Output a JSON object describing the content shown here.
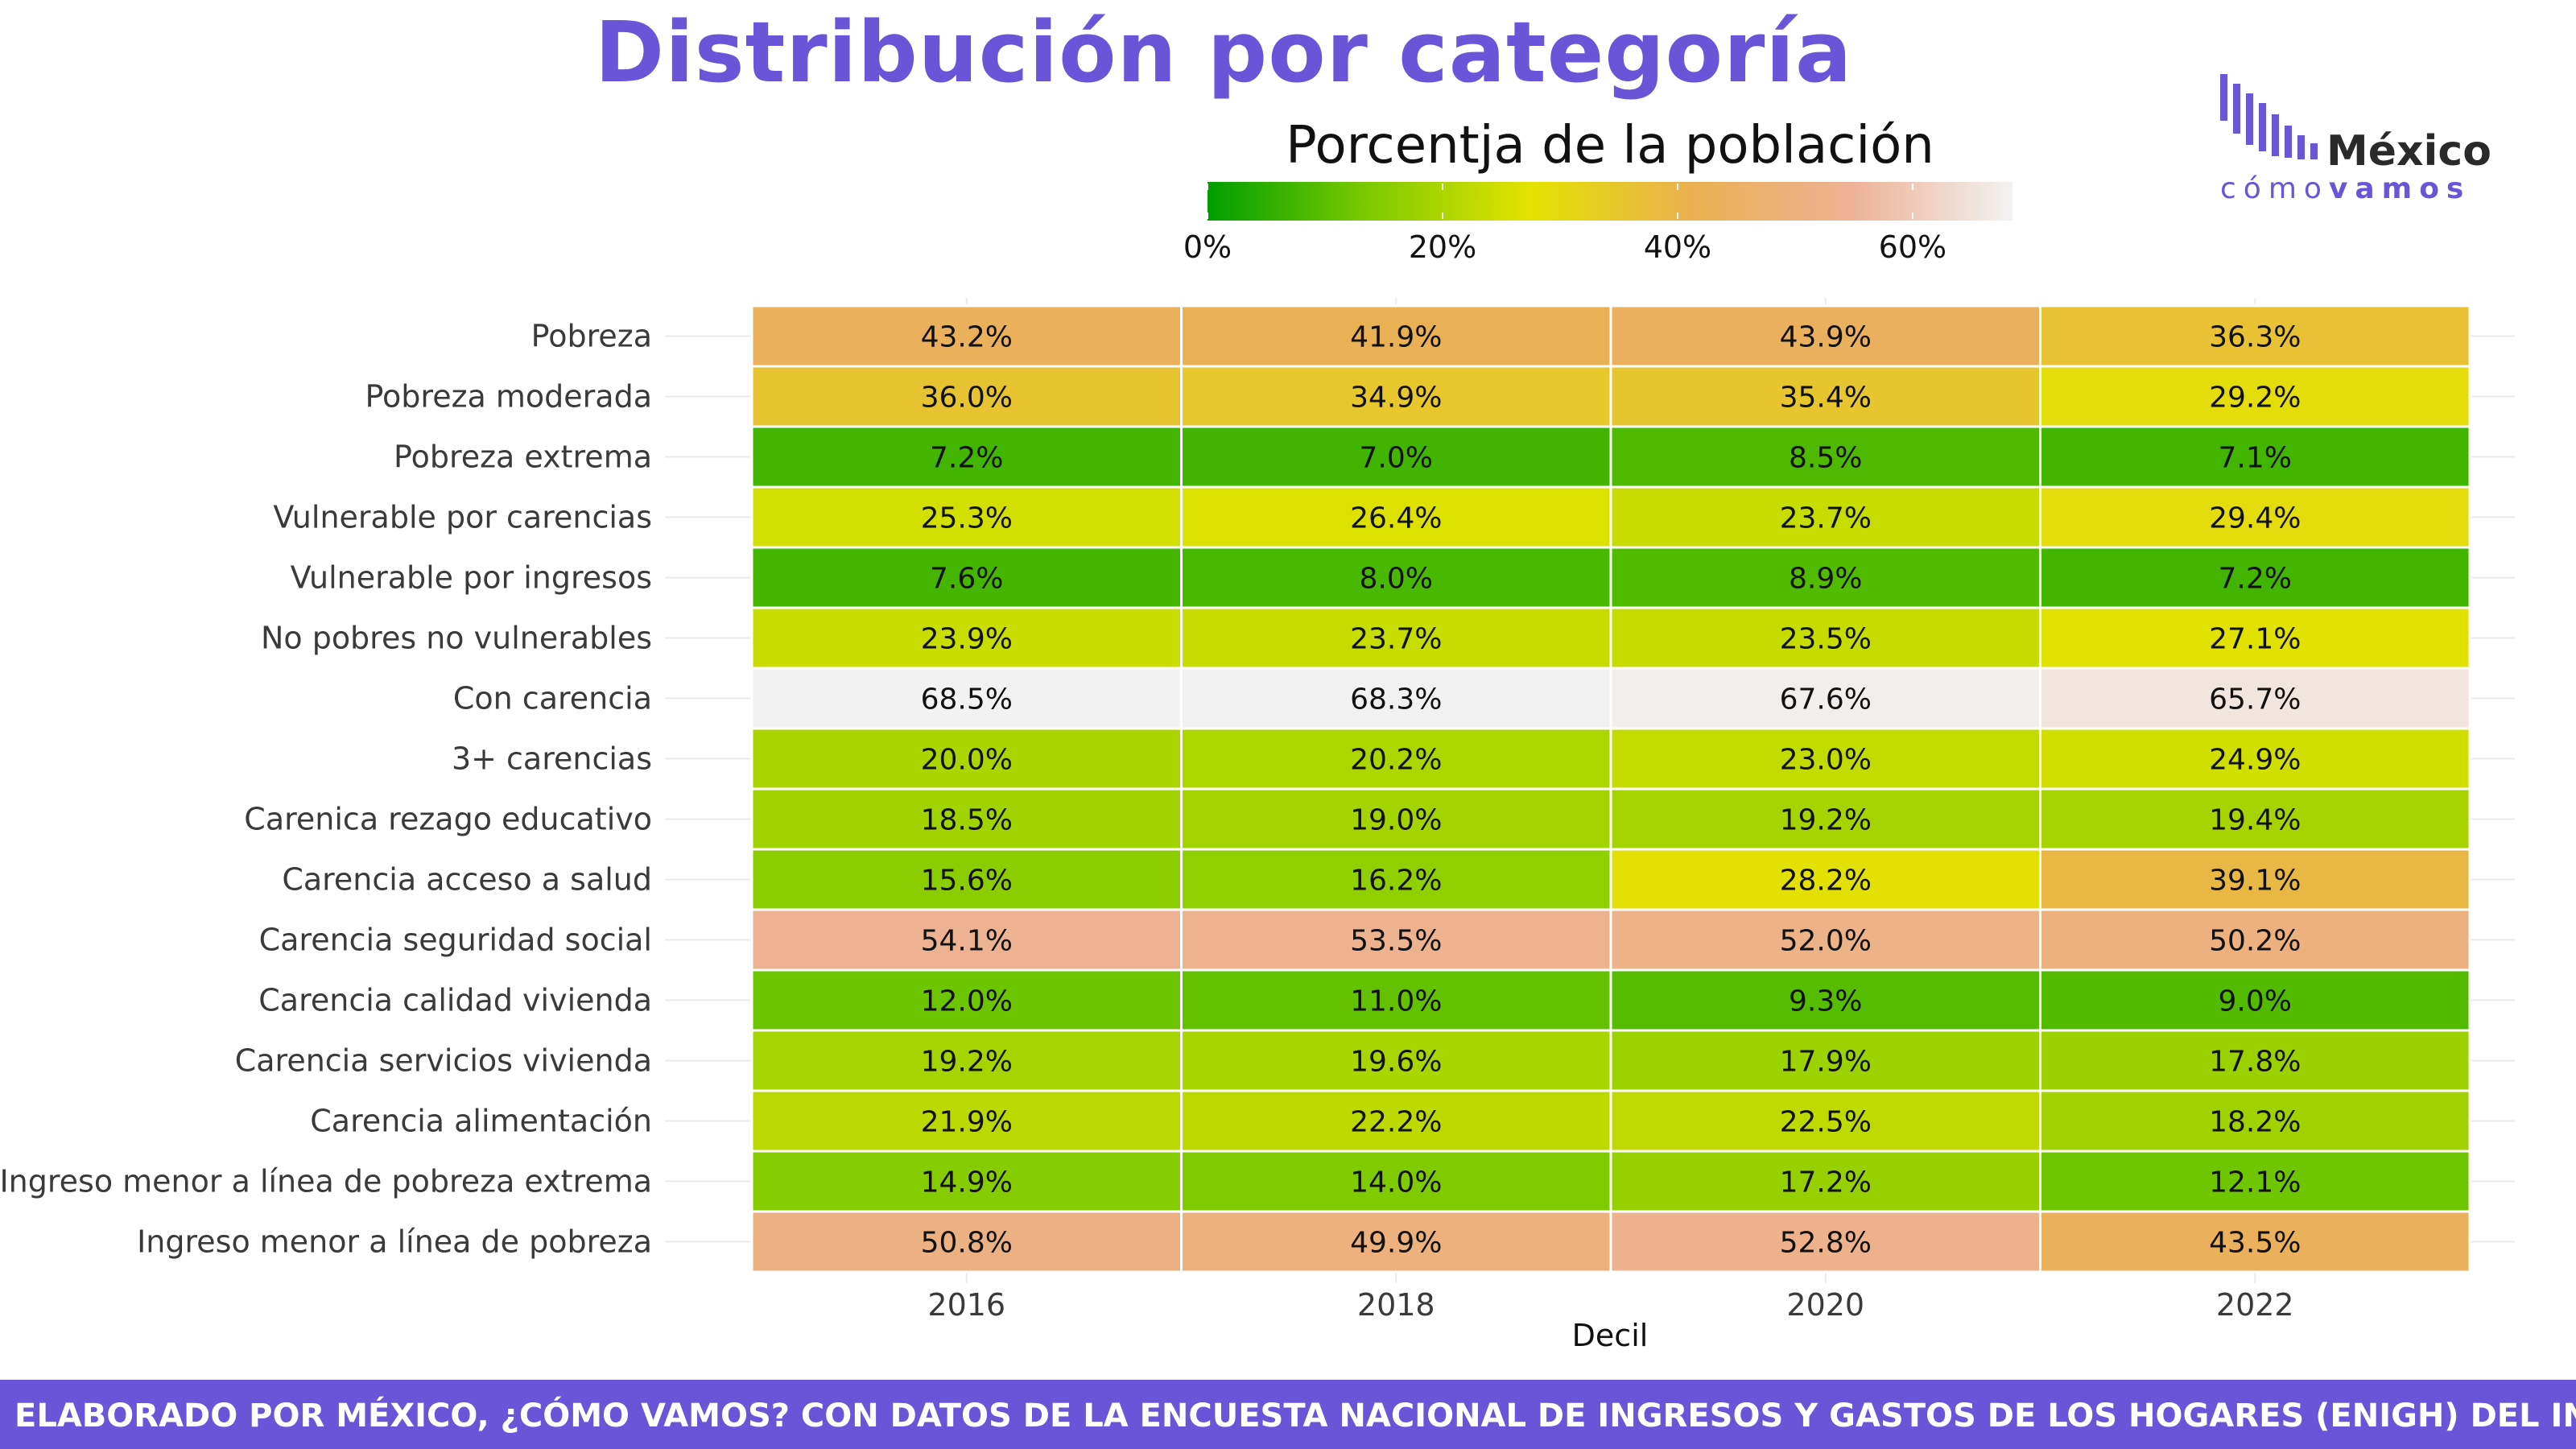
{
  "header": {
    "title": "Distribución por categoría"
  },
  "logo": {
    "brand": "México",
    "tagline_light": "cómo",
    "tagline_bold": "vamos",
    "mark_icon": "bars-logo-icon",
    "mark_color": "#6a55d8"
  },
  "footer": {
    "text": "ELABORADO POR MÉXICO, ¿CÓMO VAMOS? CON DATOS DE LA ENCUESTA NACIONAL DE INGRESOS Y GASTOS DE LOS HOGARES (ENIGH) DEL INEGI",
    "background": "#6a55d8"
  },
  "chart_data": {
    "type": "heatmap",
    "xlabel": "Decil",
    "legend": {
      "title": "Porcentja de la población",
      "position": "top",
      "ticks": [
        "0%",
        "20%",
        "40%",
        "60%"
      ],
      "tick_values": [
        0,
        20,
        40,
        60
      ],
      "range": [
        0,
        68.5
      ],
      "colors": [
        "#009e00",
        "#7dca00",
        "#e3e300",
        "#eab050",
        "#edb296",
        "#f2f2f2"
      ]
    },
    "x": [
      "2016",
      "2018",
      "2020",
      "2022"
    ],
    "y": [
      "Pobreza",
      "Pobreza moderada",
      "Pobreza extrema",
      "Vulnerable por carencias",
      "Vulnerable por ingresos",
      "No pobres no vulnerables",
      "Con carencia",
      "3+ carencias",
      "Carenica rezago educativo",
      "Carencia acceso a salud",
      "Carencia seguridad social",
      "Carencia calidad vivienda",
      "Carencia servicios vivienda",
      "Carencia alimentación",
      "Ingreso menor a línea de pobreza extrema",
      "Ingreso menor a línea de pobreza"
    ],
    "values": [
      [
        43.2,
        41.9,
        43.9,
        36.3
      ],
      [
        36.0,
        34.9,
        35.4,
        29.2
      ],
      [
        7.2,
        7.0,
        8.5,
        7.1
      ],
      [
        25.3,
        26.4,
        23.7,
        29.4
      ],
      [
        7.6,
        8.0,
        8.9,
        7.2
      ],
      [
        23.9,
        23.7,
        23.5,
        27.1
      ],
      [
        68.5,
        68.3,
        67.6,
        65.7
      ],
      [
        20.0,
        20.2,
        23.0,
        24.9
      ],
      [
        18.5,
        19.0,
        19.2,
        19.4
      ],
      [
        15.6,
        16.2,
        28.2,
        39.1
      ],
      [
        54.1,
        53.5,
        52.0,
        50.2
      ],
      [
        12.0,
        11.0,
        9.3,
        9.0
      ],
      [
        19.2,
        19.6,
        17.9,
        17.8
      ],
      [
        21.9,
        22.2,
        22.5,
        18.2
      ],
      [
        14.9,
        14.0,
        17.2,
        12.1
      ],
      [
        50.8,
        49.9,
        52.8,
        43.5
      ]
    ],
    "value_format": "percent_1dp",
    "grid": true
  }
}
